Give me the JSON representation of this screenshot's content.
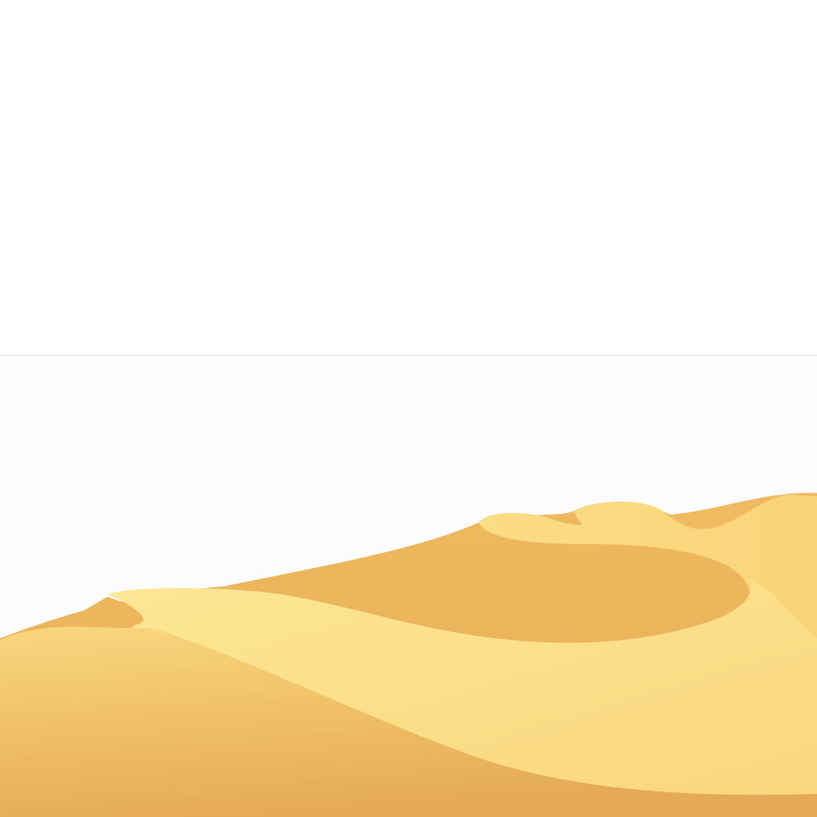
{
  "scene": {
    "subject": "desert-sand-dunes",
    "colors": {
      "sky": "#ffffff",
      "sky_lower": "#fcfcfd",
      "horizon": "#d6e6f2",
      "sand_light": "#fde793",
      "sand_mid": "#f8d47a",
      "sand_shadow": "#ebb25a",
      "sand_dark": "#e4aa55"
    }
  }
}
